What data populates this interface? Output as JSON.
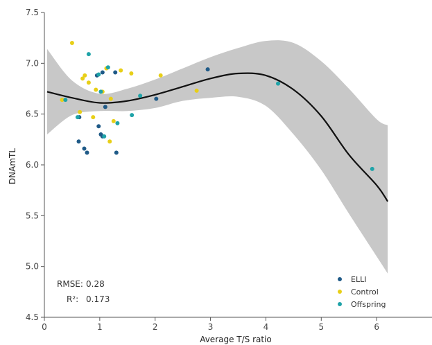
{
  "chart_data": {
    "type": "scatter",
    "xlabel": "Average T/S ratio",
    "ylabel": "DNAmTL",
    "xlim": [
      0,
      7
    ],
    "ylim": [
      4.5,
      7.5
    ],
    "x_ticks": [
      "0",
      "1",
      "2",
      "3",
      "4",
      "5",
      "6"
    ],
    "y_ticks": [
      "4.5",
      "5.0",
      "5.5",
      "6.0",
      "6.5",
      "7.0",
      "7.5"
    ],
    "grid": false,
    "legend_position": "bottom-right",
    "stats": {
      "rmse_label": "RMSE:",
      "rmse_value": "0.28",
      "r2_label": "R²:",
      "r2_value": "0.173"
    },
    "series": [
      {
        "name": "ELLI",
        "color": "#1f5a87",
        "points": [
          {
            "x": 0.62,
            "y": 6.23
          },
          {
            "x": 0.72,
            "y": 6.16
          },
          {
            "x": 0.77,
            "y": 6.12
          },
          {
            "x": 0.98,
            "y": 6.38
          },
          {
            "x": 1.02,
            "y": 6.3
          },
          {
            "x": 1.05,
            "y": 6.28
          },
          {
            "x": 1.1,
            "y": 6.57
          },
          {
            "x": 1.3,
            "y": 6.12
          },
          {
            "x": 0.95,
            "y": 6.88
          },
          {
            "x": 1.28,
            "y": 6.91
          },
          {
            "x": 2.02,
            "y": 6.65
          },
          {
            "x": 2.95,
            "y": 6.94
          },
          {
            "x": 0.63,
            "y": 6.47
          },
          {
            "x": 1.05,
            "y": 6.91
          }
        ]
      },
      {
        "name": "Control",
        "color": "#e8cf17",
        "points": [
          {
            "x": 0.32,
            "y": 6.64
          },
          {
            "x": 0.5,
            "y": 7.2
          },
          {
            "x": 0.64,
            "y": 6.52
          },
          {
            "x": 0.69,
            "y": 6.85
          },
          {
            "x": 0.73,
            "y": 6.88
          },
          {
            "x": 0.8,
            "y": 6.81
          },
          {
            "x": 0.88,
            "y": 6.47
          },
          {
            "x": 0.93,
            "y": 6.74
          },
          {
            "x": 1.05,
            "y": 6.72
          },
          {
            "x": 1.12,
            "y": 6.95
          },
          {
            "x": 1.18,
            "y": 6.23
          },
          {
            "x": 1.2,
            "y": 6.65
          },
          {
            "x": 1.25,
            "y": 6.43
          },
          {
            "x": 1.38,
            "y": 6.93
          },
          {
            "x": 1.57,
            "y": 6.9
          },
          {
            "x": 2.1,
            "y": 6.88
          },
          {
            "x": 2.75,
            "y": 6.73
          }
        ]
      },
      {
        "name": "Offspring",
        "color": "#1fa3a8",
        "points": [
          {
            "x": 0.38,
            "y": 6.64
          },
          {
            "x": 0.6,
            "y": 6.47
          },
          {
            "x": 0.8,
            "y": 7.09
          },
          {
            "x": 0.98,
            "y": 6.89
          },
          {
            "x": 1.02,
            "y": 6.72
          },
          {
            "x": 1.08,
            "y": 6.28
          },
          {
            "x": 1.15,
            "y": 6.96
          },
          {
            "x": 1.32,
            "y": 6.41
          },
          {
            "x": 1.58,
            "y": 6.49
          },
          {
            "x": 1.73,
            "y": 6.68
          },
          {
            "x": 4.22,
            "y": 6.8
          },
          {
            "x": 5.92,
            "y": 5.96
          }
        ]
      }
    ],
    "fit_line": {
      "x": [
        0.05,
        0.5,
        1.0,
        1.5,
        2.0,
        2.5,
        3.0,
        3.5,
        4.0,
        4.5,
        5.0,
        5.5,
        6.0,
        6.2
      ],
      "y": [
        6.72,
        6.66,
        6.61,
        6.63,
        6.69,
        6.77,
        6.85,
        6.9,
        6.88,
        6.74,
        6.48,
        6.1,
        5.8,
        5.64
      ]
    },
    "confidence_band": {
      "x": [
        0.05,
        0.5,
        1.0,
        1.5,
        2.0,
        2.5,
        3.0,
        3.5,
        4.0,
        4.5,
        5.0,
        5.5,
        6.0,
        6.2
      ],
      "upper": [
        7.14,
        6.83,
        6.7,
        6.75,
        6.84,
        6.95,
        7.06,
        7.15,
        7.22,
        7.2,
        7.02,
        6.75,
        6.45,
        6.39
      ],
      "lower": [
        6.3,
        6.49,
        6.53,
        6.53,
        6.56,
        6.63,
        6.66,
        6.67,
        6.58,
        6.3,
        5.95,
        5.52,
        5.1,
        4.93
      ]
    }
  }
}
